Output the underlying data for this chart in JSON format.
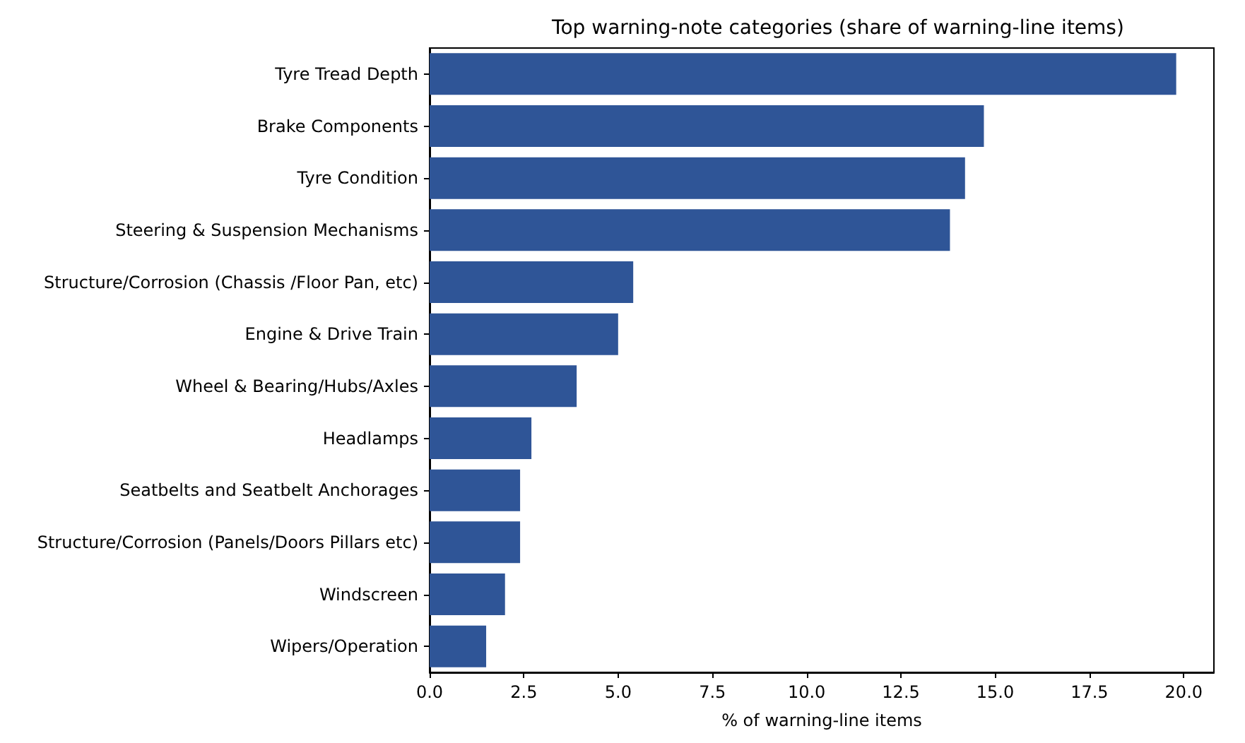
{
  "chart_data": {
    "type": "bar",
    "orientation": "horizontal",
    "title": "Top warning-note categories (share of warning-line items)",
    "xlabel": "% of warning-line items",
    "categories": [
      "Tyre Tread Depth",
      "Brake Components",
      "Tyre Condition",
      "Steering & Suspension Mechanisms",
      "Structure/Corrosion (Chassis /Floor Pan, etc)",
      "Engine & Drive Train",
      "Wheel & Bearing/Hubs/Axles",
      "Headlamps",
      "Seatbelts and Seatbelt Anchorages",
      "Structure/Corrosion (Panels/Doors Pillars etc)",
      "Windscreen",
      "Wipers/Operation"
    ],
    "values": [
      19.8,
      14.7,
      14.2,
      13.8,
      5.4,
      5.0,
      3.9,
      2.7,
      2.4,
      2.4,
      2.0,
      1.5
    ],
    "color": "#2f5597",
    "xlim": [
      0,
      20.8
    ],
    "xticks": [
      {
        "value": 0,
        "label": "0.0"
      },
      2.5,
      {
        "value": 5,
        "label": "5.0"
      },
      7.5,
      {
        "value": 10,
        "label": "10.0"
      },
      12.5,
      {
        "value": 15,
        "label": "15.0"
      },
      17.5,
      {
        "value": 20,
        "label": "20.0"
      }
    ],
    "grid": false
  }
}
